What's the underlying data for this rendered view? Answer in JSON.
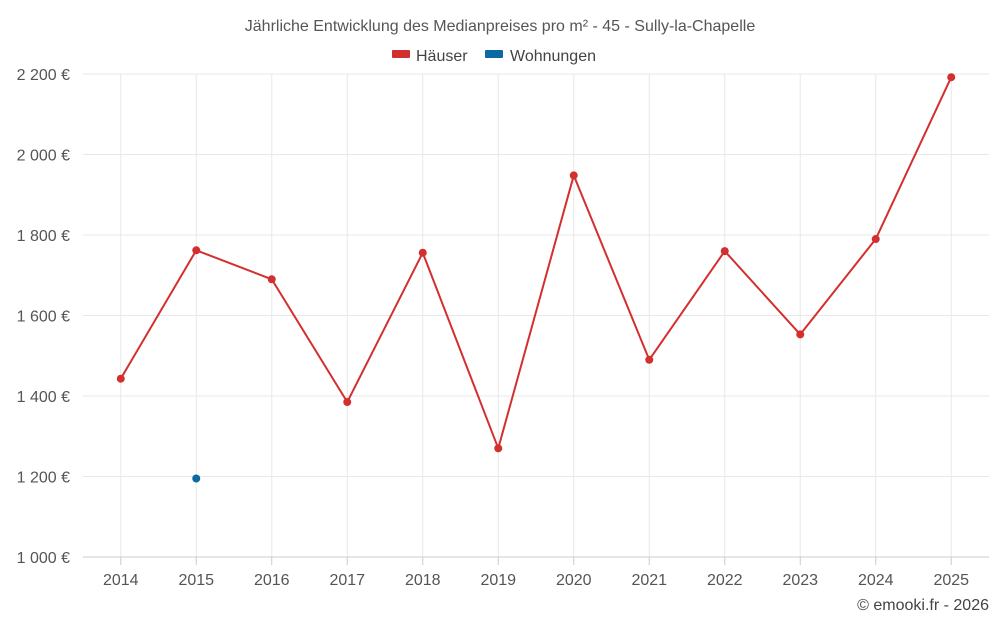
{
  "chart_data": {
    "type": "line",
    "title": "Jährliche Entwicklung des Medianpreises pro m² - 45 - Sully-la-Chapelle",
    "categories": [
      "2014",
      "2015",
      "2016",
      "2017",
      "2018",
      "2019",
      "2020",
      "2021",
      "2022",
      "2023",
      "2024",
      "2025"
    ],
    "series": [
      {
        "name": "Häuser",
        "color": "#d32f2f",
        "values": [
          1443,
          1762,
          1690,
          1385,
          1756,
          1270,
          1948,
          1490,
          1760,
          1553,
          1790,
          2192
        ]
      },
      {
        "name": "Wohnungen",
        "color": "#0a6aa1",
        "values": [
          null,
          1195,
          null,
          null,
          null,
          null,
          null,
          null,
          null,
          null,
          null,
          null
        ]
      }
    ],
    "ylim": [
      1000,
      2200
    ],
    "yticks": [
      1000,
      1200,
      1400,
      1600,
      1800,
      2000,
      2200
    ],
    "ytick_labels": [
      "1 000 €",
      "1 200 €",
      "1 400 €",
      "1 600 €",
      "1 800 €",
      "2 000 €",
      "2 200 €"
    ],
    "xlabel": "",
    "ylabel": "",
    "grid": true,
    "legend_position": "top-center"
  },
  "credit": "© emooki.fr - 2026"
}
